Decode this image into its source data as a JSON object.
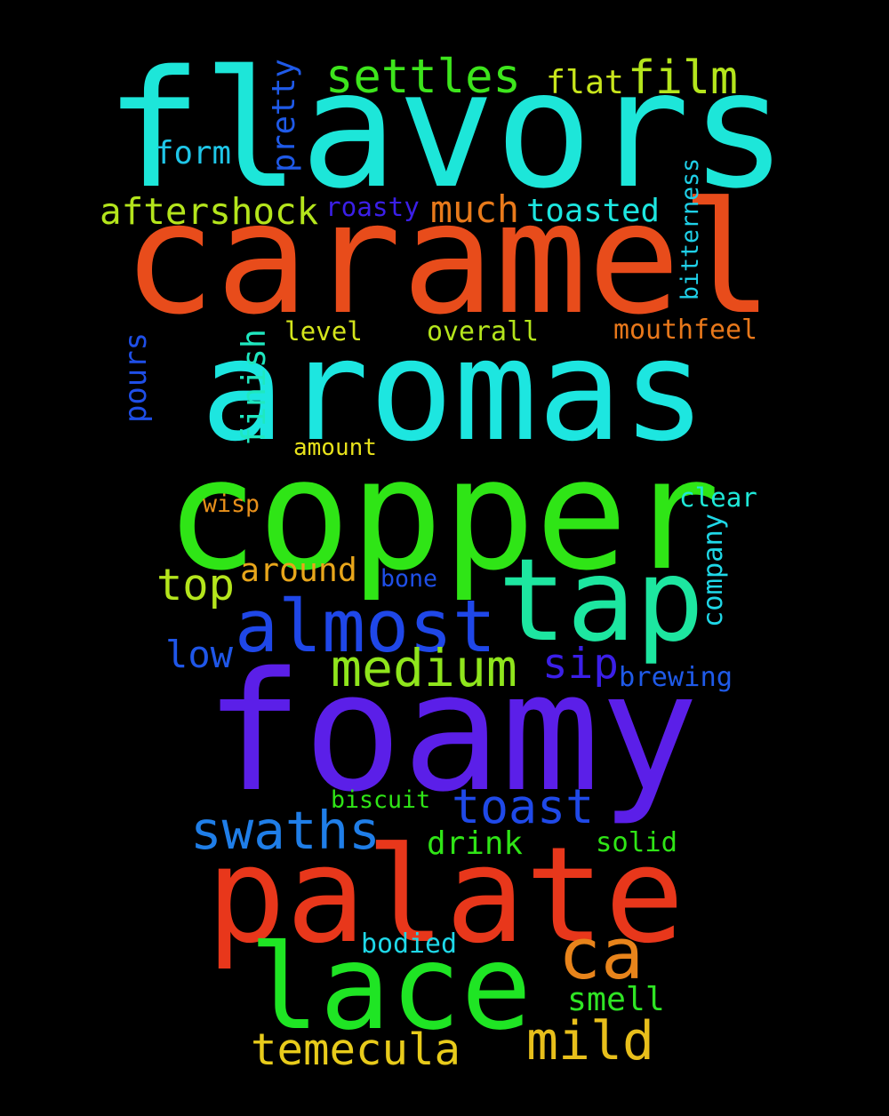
{
  "words": [
    {
      "text": "flavors",
      "color": "#1de6d9"
    },
    {
      "text": "caramel",
      "color": "#e84c1b"
    },
    {
      "text": "aromas",
      "color": "#1de6e0"
    },
    {
      "text": "copper",
      "color": "#2fe516"
    },
    {
      "text": "foamy",
      "color": "#5b1fe8"
    },
    {
      "text": "palate",
      "color": "#e8371b"
    },
    {
      "text": "lace",
      "color": "#1fe524"
    },
    {
      "text": "tap",
      "color": "#1de6a0"
    },
    {
      "text": "almost",
      "color": "#1f47e8"
    },
    {
      "text": "medium",
      "color": "#8fe51c"
    },
    {
      "text": "swaths",
      "color": "#1f7ee8"
    },
    {
      "text": "toast",
      "color": "#1f49e8"
    },
    {
      "text": "ca",
      "color": "#e8841b"
    },
    {
      "text": "mild",
      "color": "#e8bf1b"
    },
    {
      "text": "temecula",
      "color": "#e8cb1b"
    },
    {
      "text": "settles",
      "color": "#3de51c"
    },
    {
      "text": "film",
      "color": "#b4e51c"
    },
    {
      "text": "flat",
      "color": "#c8e51c"
    },
    {
      "text": "pretty",
      "color": "#1f5ae8"
    },
    {
      "text": "form",
      "color": "#1fc6e8"
    },
    {
      "text": "aftershock",
      "color": "#b4e51c"
    },
    {
      "text": "roasty",
      "color": "#3b1fe8"
    },
    {
      "text": "much",
      "color": "#e87a1b"
    },
    {
      "text": "toasted",
      "color": "#1de6e0"
    },
    {
      "text": "bitterness",
      "color": "#1fd0e8"
    },
    {
      "text": "level",
      "color": "#d4e51c"
    },
    {
      "text": "overall",
      "color": "#b4e51c"
    },
    {
      "text": "mouthfeel",
      "color": "#e8781b"
    },
    {
      "text": "pours",
      "color": "#1f4fe8"
    },
    {
      "text": "finish",
      "color": "#1fe8c0"
    },
    {
      "text": "amount",
      "color": "#e8e21b"
    },
    {
      "text": "wisp",
      "color": "#e8901b"
    },
    {
      "text": "clear",
      "color": "#1fe8d8"
    },
    {
      "text": "company",
      "color": "#1fd8e8"
    },
    {
      "text": "top",
      "color": "#b4e51c"
    },
    {
      "text": "around",
      "color": "#e8a61b"
    },
    {
      "text": "bone",
      "color": "#1f4fe8"
    },
    {
      "text": "low",
      "color": "#1f56e8"
    },
    {
      "text": "sip",
      "color": "#3b1fe8"
    },
    {
      "text": "brewing",
      "color": "#1f5ae8"
    },
    {
      "text": "biscuit",
      "color": "#2fe516"
    },
    {
      "text": "drink",
      "color": "#2fe516"
    },
    {
      "text": "solid",
      "color": "#2fe516"
    },
    {
      "text": "bodied",
      "color": "#1fd8e8"
    },
    {
      "text": "smell",
      "color": "#2fe524"
    }
  ]
}
